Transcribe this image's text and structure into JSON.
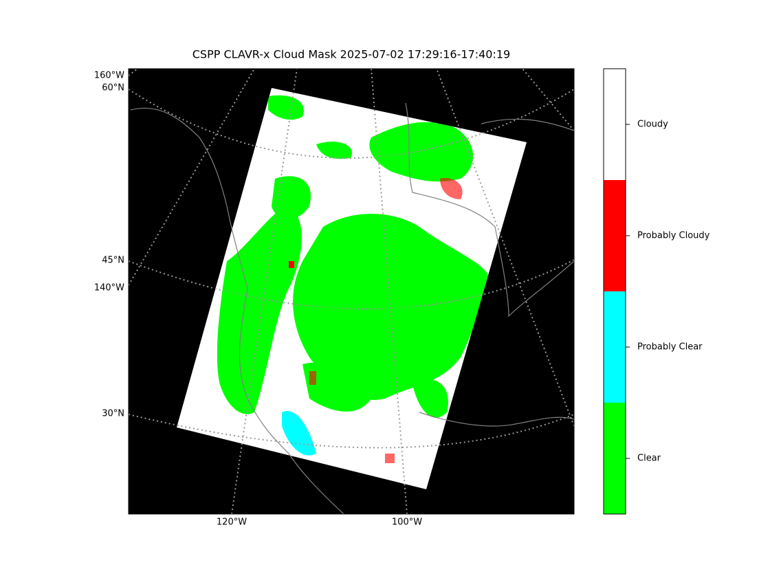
{
  "title": "CSPP CLAVR-x Cloud Mask 2025-07-02 17:29:16-17:40:19",
  "map": {
    "left_labels": [
      "160°W",
      "60°N",
      "45°N",
      "140°W",
      "30°N"
    ],
    "bottom_labels": [
      "120°W",
      "100°W"
    ]
  },
  "colorbar": {
    "classes": [
      {
        "label": "Clear",
        "color": "#00ff00"
      },
      {
        "label": "Probably Clear",
        "color": "#00ffff"
      },
      {
        "label": "Probably Cloudy",
        "color": "#ff0000"
      },
      {
        "label": "Cloudy",
        "color": "#ffffff"
      }
    ]
  }
}
